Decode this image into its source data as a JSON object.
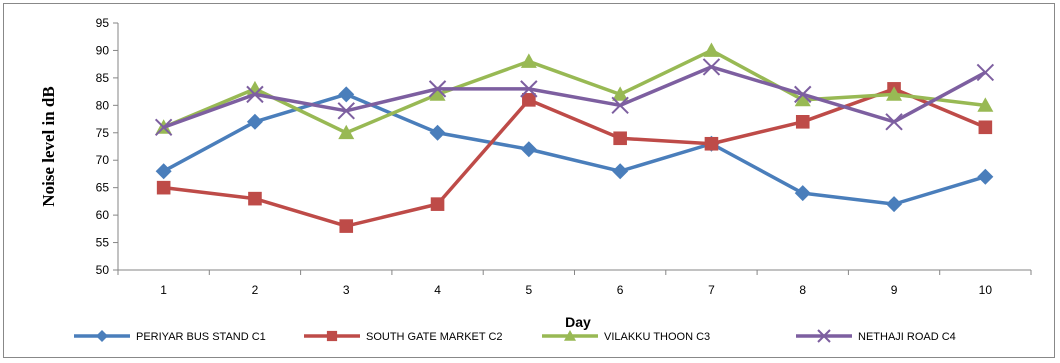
{
  "chart_data": {
    "type": "line",
    "title": "",
    "xlabel": "Day",
    "ylabel": "Noise level in dB",
    "categories": [
      "1",
      "2",
      "3",
      "4",
      "5",
      "6",
      "7",
      "8",
      "9",
      "10"
    ],
    "ylim": [
      50,
      95
    ],
    "yticks": [
      "50",
      "55",
      "60",
      "65",
      "70",
      "75",
      "80",
      "85",
      "90",
      "95"
    ],
    "grid": false,
    "legend_position": "bottom",
    "series": [
      {
        "name": "PERIYAR BUS STAND C1",
        "color": "#4a7ebb",
        "marker": "diamond",
        "values": [
          68,
          77,
          82,
          75,
          72,
          68,
          73,
          64,
          62,
          67
        ]
      },
      {
        "name": "SOUTH GATE MARKET C2",
        "color": "#be4b48",
        "marker": "square",
        "values": [
          65,
          63,
          58,
          62,
          81,
          74,
          73,
          77,
          83,
          76
        ]
      },
      {
        "name": "VILAKKU THOON C3",
        "color": "#98b954",
        "marker": "triangle",
        "values": [
          76,
          83,
          75,
          82,
          88,
          82,
          90,
          81,
          82,
          80
        ]
      },
      {
        "name": "NETHAJI ROAD C4",
        "color": "#7d5fa0",
        "marker": "x",
        "values": [
          76,
          82,
          79,
          83,
          83,
          80,
          87,
          82,
          77,
          86
        ]
      }
    ]
  }
}
